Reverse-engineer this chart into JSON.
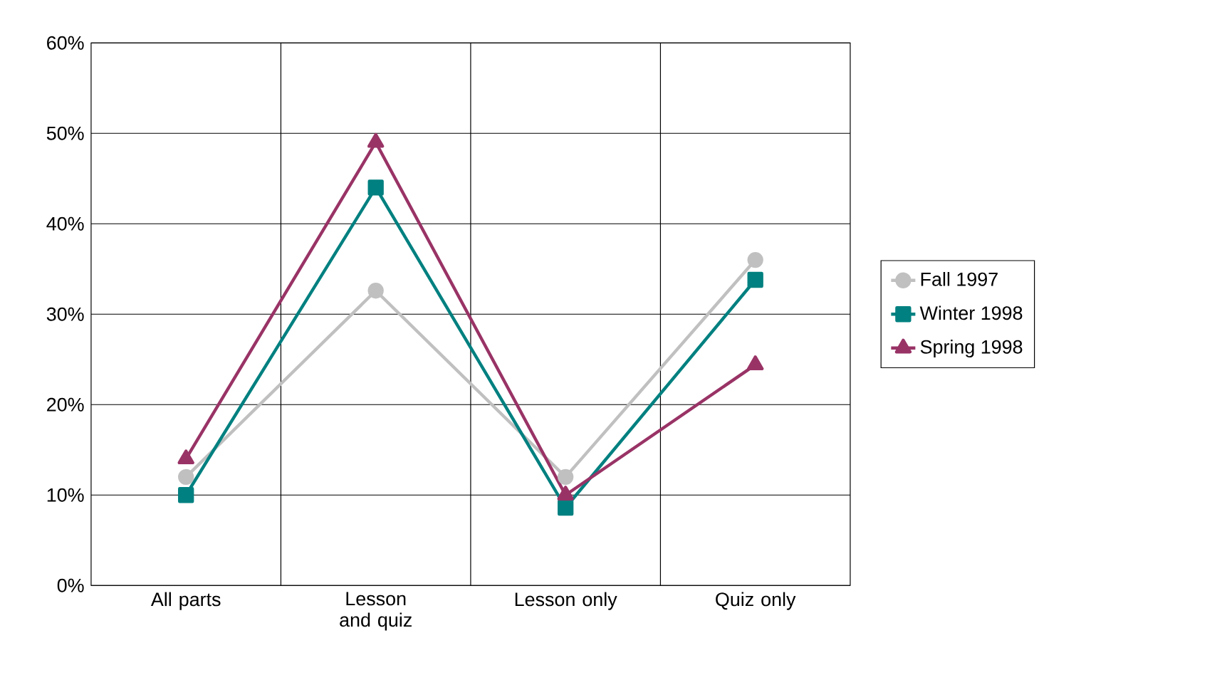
{
  "chart_data": {
    "type": "line",
    "categories": [
      "All parts",
      "Lesson and quiz",
      "Lesson only",
      "Quiz only"
    ],
    "series": [
      {
        "name": "Fall 1997",
        "color": "#c0c0c0",
        "marker": "circle",
        "values": [
          12,
          32.6,
          12,
          36
        ]
      },
      {
        "name": "Winter 1998",
        "color": "#008080",
        "marker": "square",
        "values": [
          10,
          44,
          8.6,
          33.8
        ]
      },
      {
        "name": "Spring 1998",
        "color": "#993366",
        "marker": "triangle",
        "values": [
          14,
          49,
          10,
          24.4
        ]
      }
    ],
    "ylim": [
      0,
      60
    ],
    "yticks": [
      {
        "value": 0,
        "label": "0%"
      },
      {
        "value": 10,
        "label": "10%"
      },
      {
        "value": 20,
        "label": "20%"
      },
      {
        "value": 30,
        "label": "30%"
      },
      {
        "value": 40,
        "label": "40%"
      },
      {
        "value": 50,
        "label": "50%"
      },
      {
        "value": 60,
        "label": "60%"
      }
    ],
    "grid": true,
    "legend": "right",
    "line_style": "solid"
  }
}
